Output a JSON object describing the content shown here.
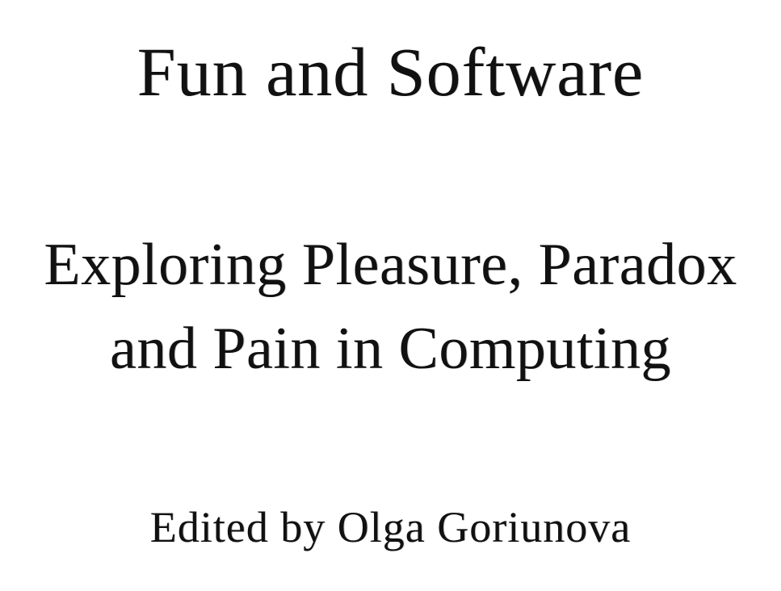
{
  "title_page": {
    "title": "Fun and Software",
    "subtitle_line_1": "Exploring Pleasure, Paradox",
    "subtitle_line_2": "and Pain in Computing",
    "editor": "Edited by Olga Goriunova"
  }
}
